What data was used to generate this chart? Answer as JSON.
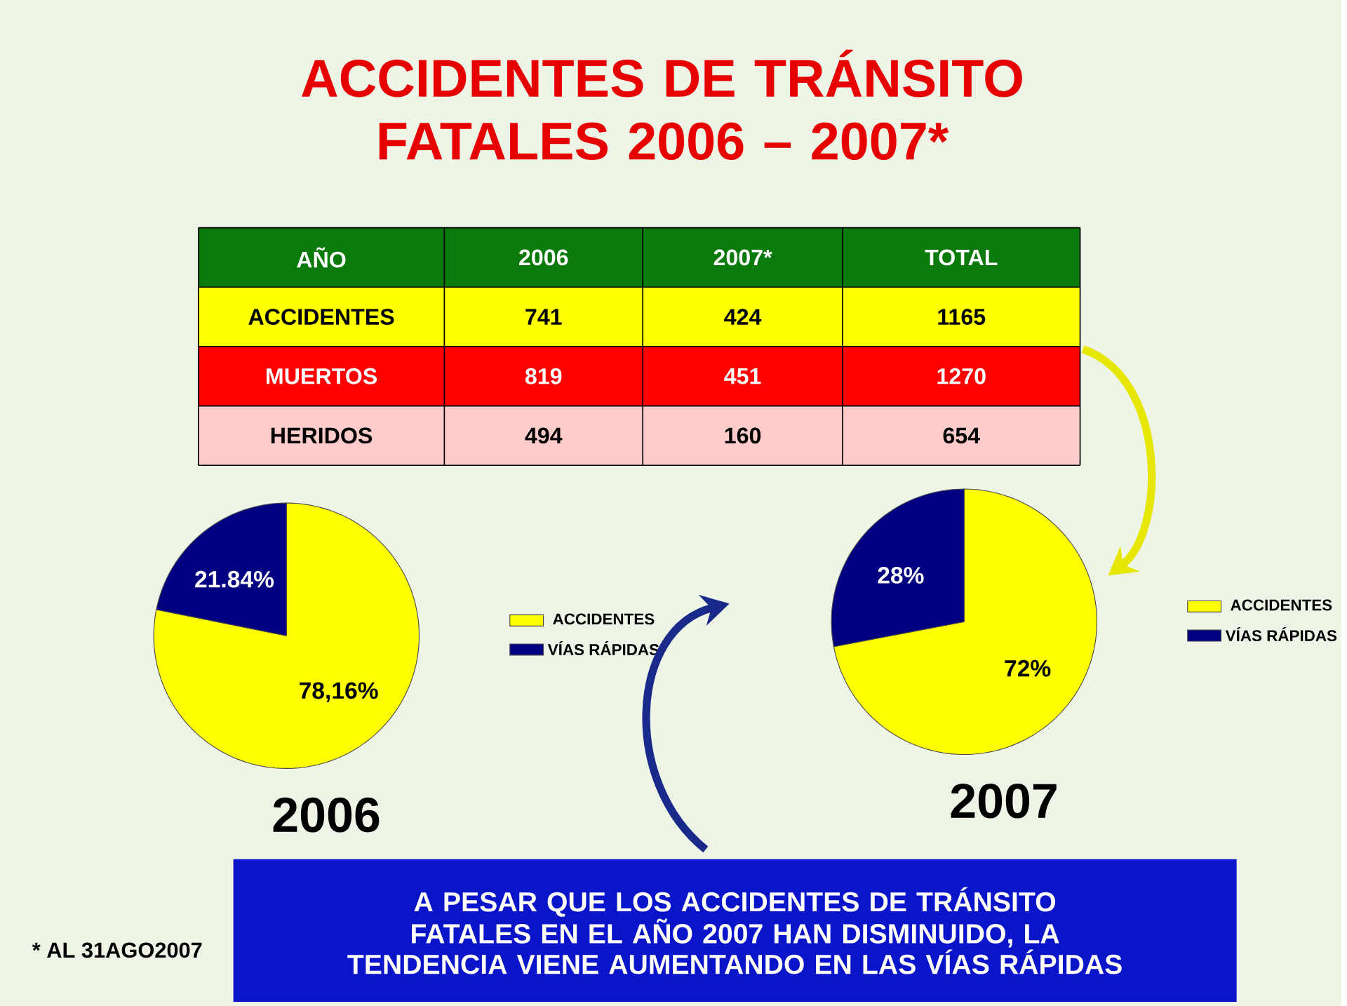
{
  "chart_data": [
    {
      "type": "other",
      "title": "ACCIDENTES DE TRÁNSITO FATALES 2006 – 2007*",
      "legend_title": "AÑO",
      "categories": [
        "2006",
        "2007*",
        "TOTAL"
      ],
      "series": [
        {
          "name": "ACCIDENTES",
          "color": "#ffff00",
          "values": [
            741,
            424,
            1165
          ]
        },
        {
          "name": "MUERTOS",
          "color": "#ff0000",
          "values": [
            819,
            451,
            1270
          ]
        },
        {
          "name": "HERIDOS",
          "color": "#ffcccc",
          "values": [
            494,
            160,
            654
          ]
        }
      ],
      "data_labels": true,
      "annotations": [
        "A PESAR QUE LOS ACCIDENTES DE TRÁNSITO FATALES EN EL AÑO 2007 HAN DISMINUIDO, LA TENDENCIA VIENE AUMENTANDO EN LAS VÍAS RÁPIDAS",
        "* AL 31AGO2007"
      ]
    },
    {
      "type": "pie",
      "title": "2006",
      "categories": [
        "ACCIDENTES",
        "VÍAS RÁPIDAS"
      ],
      "values": [
        78.16,
        21.84
      ],
      "value_labels": [
        "78,16%",
        "21.84%"
      ],
      "colors": [
        "#ffff00",
        "#000080"
      ],
      "legend": "right"
    },
    {
      "type": "pie",
      "title": "2007",
      "categories": [
        "ACCIDENTES",
        "VÍAS RÁPIDAS"
      ],
      "values": [
        72,
        28
      ],
      "value_labels": [
        "72%",
        "28%"
      ],
      "colors": [
        "#ffff00",
        "#000080"
      ],
      "legend": "right"
    }
  ]
}
